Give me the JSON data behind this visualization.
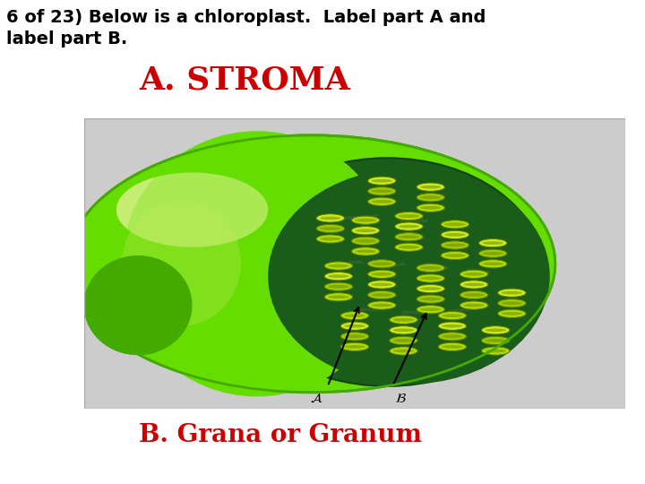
{
  "line1": "6 of 23) Below is a chloroplast.  Label part A and",
  "line2": "label part B.",
  "title_color": "#000000",
  "title_fontsize": 14,
  "label_A_text": "A. STROMA",
  "label_A_color": "#cc0000",
  "label_A_fontsize": 26,
  "label_B_text": "B. Grana or Granum",
  "label_B_color": "#cc0000",
  "label_B_fontsize": 20,
  "bg_color": "#ffffff",
  "img_bg_color": "#cccccc",
  "outer_color": "#66dd00",
  "outer_edge": "#44aa00",
  "highlight_color": "#ccee88",
  "inner_dark_color": "#1a5c1a",
  "disc_colors": [
    "#aadd00",
    "#99cc00",
    "#c8ee22"
  ],
  "disc_edge": "#667700",
  "arrow_color": "#000000",
  "lam_color": "#336633"
}
